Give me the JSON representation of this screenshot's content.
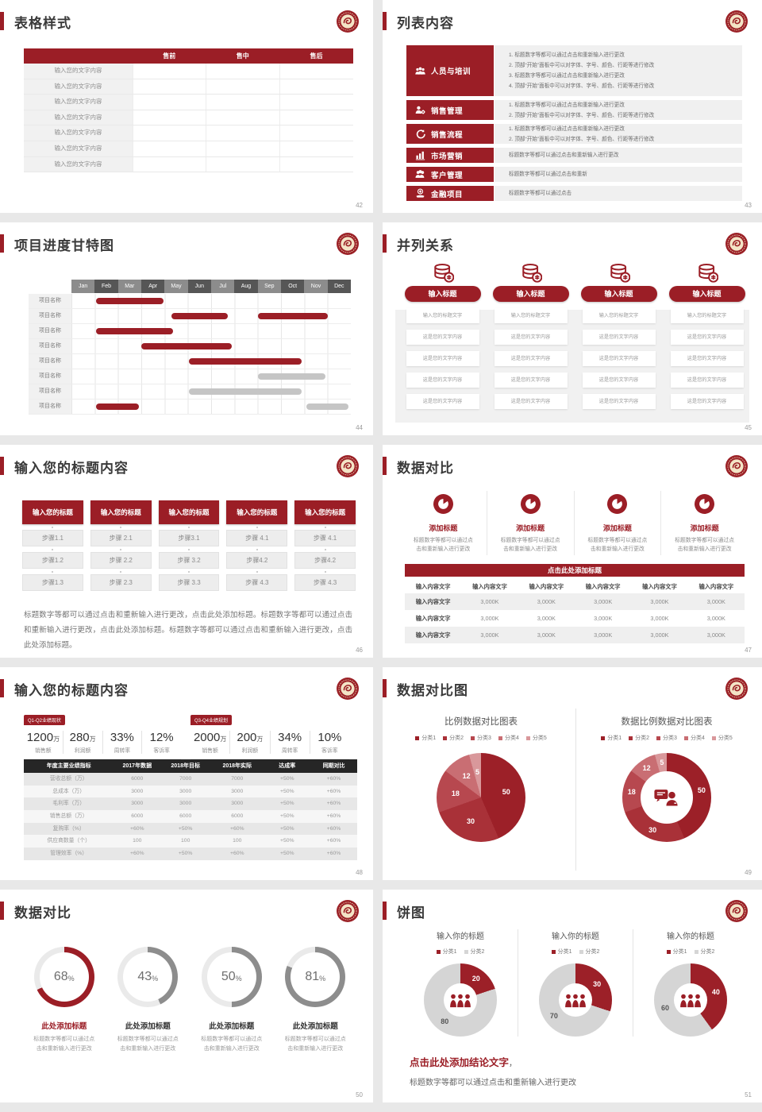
{
  "colors": {
    "red": "#9b1e26",
    "gray_bar": "#c5c5c5",
    "gauge_track": "#eaeaea"
  },
  "slides": {
    "t42": {
      "title": "表格样式",
      "page_no": "42",
      "table": {
        "headers": [
          "",
          "售前",
          "售中",
          "售后"
        ],
        "row_label": "输入您的文字内容"
      }
    },
    "t43": {
      "title": "列表内容",
      "page_no": "43",
      "items": [
        {
          "icon": "people-training-icon",
          "label": "人员与培训",
          "lines": [
            "1.  标题数字等都可以通过点击和重新输入进行更改",
            "2.  顶部“开始”面板中可以对字体、字号、颜色、行距等进行修改",
            "3.  标题数字等都可以通过点击和重新输入进行更改",
            "4.  顶部“开始”面板中可以对字体、字号、颜色、行距等进行修改"
          ]
        },
        {
          "icon": "sales-management-icon",
          "label": "销售管理",
          "lines": [
            "1.  标题数字等都可以通过点击和重新输入进行更改",
            "2.  顶部“开始”面板中可以对字体、字号、颜色、行距等进行修改"
          ]
        },
        {
          "icon": "sales-process-icon",
          "label": "销售流程",
          "lines": [
            "1.  标题数字等都可以通过点击和重新输入进行更改",
            "2.  顶部“开始”面板中可以对字体、字号、颜色、行距等进行修改"
          ]
        },
        {
          "icon": "marketing-icon",
          "label": "市场营销",
          "lines": [
            "标题数字等都可以通过点击和重新输入进行更改"
          ]
        },
        {
          "icon": "customer-management-icon",
          "label": "客户管理",
          "lines": [
            "标题数字等都可以通过点击和重新"
          ]
        },
        {
          "icon": "finance-project-icon",
          "label": "金融项目",
          "lines": [
            "标题数字等都可以通过点击"
          ]
        }
      ]
    },
    "t44": {
      "title": "项目进度甘特图",
      "page_no": "44",
      "row_label": "项目名称",
      "months": [
        "Jan",
        "Feb",
        "Mar",
        "Apr",
        "May",
        "Jun",
        "Jul",
        "Aug",
        "Sep",
        "Oct",
        "Nov",
        "Dec"
      ],
      "bars": [
        [
          {
            "s": 1.05,
            "e": 3.95,
            "c": "red"
          }
        ],
        [
          {
            "s": 4.3,
            "e": 6.7,
            "c": "red"
          },
          {
            "s": 8.0,
            "e": 11.0,
            "c": "red"
          }
        ],
        [
          {
            "s": 1.05,
            "e": 4.35,
            "c": "red"
          }
        ],
        [
          {
            "s": 3.0,
            "e": 6.9,
            "c": "red"
          }
        ],
        [
          {
            "s": 5.05,
            "e": 9.9,
            "c": "red"
          }
        ],
        [
          {
            "s": 8.0,
            "e": 10.9,
            "c": "gray"
          }
        ],
        [
          {
            "s": 5.05,
            "e": 9.9,
            "c": "gray"
          }
        ],
        [
          {
            "s": 1.05,
            "e": 2.9,
            "c": "red"
          },
          {
            "s": 10.1,
            "e": 11.9,
            "c": "gray"
          }
        ]
      ]
    },
    "t45": {
      "title": "并列关系",
      "page_no": "45",
      "pill": "输入标题",
      "rows": [
        "输入您的标题文字",
        "这是您的文字内容",
        "这是您的文字内容",
        "这是您的文字内容",
        "这是您的文字内容"
      ]
    },
    "t46": {
      "title": "输入您的标题内容",
      "page_no": "46",
      "header": "输入您的标题",
      "cols": [
        [
          "步骤1.1",
          "步骤1.2",
          "步骤1.3"
        ],
        [
          "步骤 2.1",
          "步骤 2.2",
          "步骤 2.3"
        ],
        [
          "步骤3.1",
          "步骤 3.2",
          "步骤 3.3"
        ],
        [
          "步骤 4.1",
          "步骤4.2",
          "步骤 4.3"
        ],
        [
          "步骤 4.1",
          "步骤4.2",
          "步骤 4.3"
        ]
      ],
      "paragraph": "标题数字等都可以通过点击和重新输入进行更改，点击此处添加标题。标题数字等都可以通过点击和重新输入进行更改，点击此处添加标题。标题数字等都可以通过点击和重新输入进行更改，点击此处添加标题。"
    },
    "t47": {
      "title": "数据对比",
      "page_no": "47",
      "col_title": "添加标题",
      "col_desc1": "标题数字等都可以通过点",
      "col_desc2": "击和重新输入进行更改",
      "banner": "点击此处添加标题",
      "table": {
        "header": "输入内容文字",
        "row_label": "输入内容文字",
        "value": "3,000K"
      }
    },
    "t48": {
      "title": "输入您的标题内容",
      "page_no": "48",
      "groups": [
        {
          "tag": "Q1-Q2业绩现状",
          "stats": [
            {
              "v": "1200",
              "unit": "万",
              "label": "销售额"
            },
            {
              "v": "280",
              "unit": "万",
              "label": "利润额"
            },
            {
              "v": "33%",
              "unit": "",
              "label": "周转率"
            },
            {
              "v": "12%",
              "unit": "",
              "label": "客诉率"
            }
          ]
        },
        {
          "tag": "Q3-Q4业绩规划",
          "stats": [
            {
              "v": "2000",
              "unit": "万",
              "label": "销售额"
            },
            {
              "v": "200",
              "unit": "万",
              "label": "利润额"
            },
            {
              "v": "34%",
              "unit": "",
              "label": "周转率"
            },
            {
              "v": "10%",
              "unit": "",
              "label": "客诉率"
            }
          ]
        }
      ],
      "table": {
        "headers": [
          "年度主要业绩指标",
          "2017年数据",
          "2018年目标",
          "2018年实际",
          "达成率",
          "同期对比"
        ],
        "rows": [
          [
            "营收总额（万）",
            "6000",
            "7000",
            "7000",
            "+50%",
            "+60%"
          ],
          [
            "总成本（万）",
            "3000",
            "3000",
            "3000",
            "+50%",
            "+60%"
          ],
          [
            "毛利率（万）",
            "3000",
            "3000",
            "3000",
            "+50%",
            "+60%"
          ],
          [
            "销售总额（万）",
            "6000",
            "6000",
            "6000",
            "+50%",
            "+60%"
          ],
          [
            "复购率（%）",
            "+60%",
            "+50%",
            "+60%",
            "+50%",
            "+60%"
          ],
          [
            "供应商数量（个）",
            "100",
            "100",
            "100",
            "+50%",
            "+60%"
          ],
          [
            "管理效率（%）",
            "+60%",
            "+50%",
            "+60%",
            "+50%",
            "+60%"
          ]
        ]
      }
    },
    "t49": {
      "title": "数据对比图",
      "page_no": "49",
      "left_title": "比例数据对比图表",
      "right_title": "数据比例数据对比图表",
      "legend": [
        "分类1",
        "分类2",
        "分类3",
        "分类4",
        "分类5"
      ],
      "chart": {
        "type": "pie",
        "values": [
          50,
          30,
          18,
          12,
          5
        ],
        "colors": [
          "#9c2028",
          "#a93138",
          "#b7484f",
          "#c96e73",
          "#d9989b"
        ]
      }
    },
    "t50": {
      "title": "数据对比",
      "page_no": "50",
      "unit": "%",
      "item_title": "此处添加标题",
      "desc1": "标题数字等都可以通过点",
      "desc2": "击和重新输入进行更改",
      "gauges": [
        {
          "pct": 68,
          "color": "#9b1e26"
        },
        {
          "pct": 43,
          "color": "#8d8d8d"
        },
        {
          "pct": 50,
          "color": "#8d8d8d"
        },
        {
          "pct": 81,
          "color": "#8d8d8d"
        }
      ]
    },
    "t51": {
      "title": "饼图",
      "page_no": "51",
      "chart_title": "输入你的标题",
      "legend": [
        "分类1",
        "分类2"
      ],
      "chart": {
        "type": "donut",
        "colors": [
          "#9c2028",
          "#d5d5d5"
        ],
        "donuts": [
          [
            20,
            80
          ],
          [
            30,
            70
          ],
          [
            40,
            60
          ]
        ]
      },
      "conclusion_title": "点击此处添加结论文字",
      "conclusion_comma": "，",
      "conclusion_text": "标题数字等都可以通过点击和重新输入进行更改"
    }
  }
}
